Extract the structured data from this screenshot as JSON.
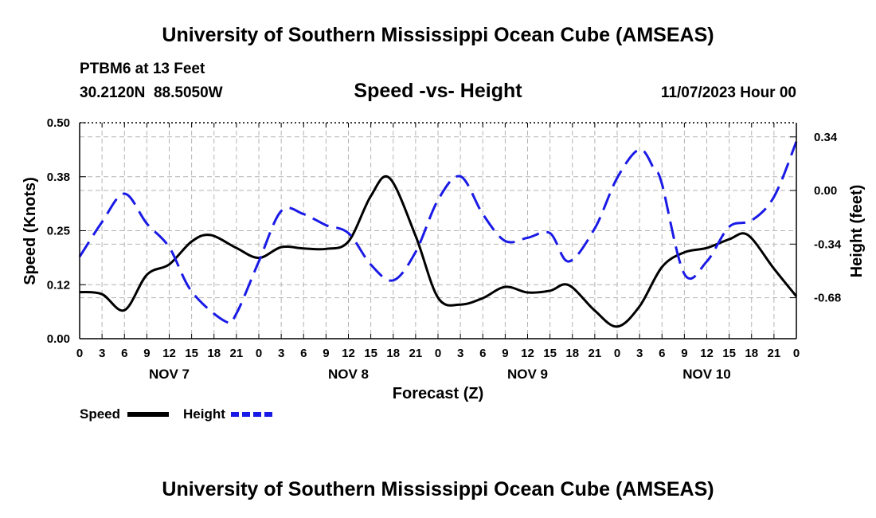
{
  "header": {
    "title": "University of Southern Mississippi Ocean Cube (AMSEAS)",
    "station": "PTBM6 at 13 Feet",
    "coords": "30.2120N  88.5050W",
    "subtitle": "Speed -vs- Height",
    "datetime": "11/07/2023 Hour 00"
  },
  "footer": {
    "title": "University of Southern Mississippi Ocean Cube (AMSEAS)"
  },
  "chart_data": {
    "type": "line",
    "xlabel": "Forecast (Z)",
    "ylabel": "Speed (Knots)",
    "y2label": "Height (feet)",
    "x_range": [
      0,
      96
    ],
    "ylim": [
      0,
      0.5
    ],
    "y2lim": [
      -0.94,
      0.43
    ],
    "y_ticks": [
      {
        "value": 0.0,
        "label": "0.00"
      },
      {
        "value": 0.125,
        "label": "0.12"
      },
      {
        "value": 0.25,
        "label": "0.25"
      },
      {
        "value": 0.375,
        "label": "0.38"
      },
      {
        "value": 0.5,
        "label": "0.50"
      }
    ],
    "y2_ticks": [
      {
        "value": -0.68,
        "label": "-0.68"
      },
      {
        "value": -0.34,
        "label": "-0.34"
      },
      {
        "value": 0.0,
        "label": "0.00"
      },
      {
        "value": 0.34,
        "label": "0.34"
      }
    ],
    "x_ticks": [
      {
        "value": 0,
        "label": "0"
      },
      {
        "value": 3,
        "label": "3"
      },
      {
        "value": 6,
        "label": "6"
      },
      {
        "value": 9,
        "label": "9"
      },
      {
        "value": 12,
        "label": "12"
      },
      {
        "value": 15,
        "label": "15"
      },
      {
        "value": 18,
        "label": "18"
      },
      {
        "value": 21,
        "label": "21"
      },
      {
        "value": 24,
        "label": "0"
      },
      {
        "value": 27,
        "label": "3"
      },
      {
        "value": 30,
        "label": "6"
      },
      {
        "value": 33,
        "label": "9"
      },
      {
        "value": 36,
        "label": "12"
      },
      {
        "value": 39,
        "label": "15"
      },
      {
        "value": 42,
        "label": "18"
      },
      {
        "value": 45,
        "label": "21"
      },
      {
        "value": 48,
        "label": "0"
      },
      {
        "value": 51,
        "label": "3"
      },
      {
        "value": 54,
        "label": "6"
      },
      {
        "value": 57,
        "label": "9"
      },
      {
        "value": 60,
        "label": "12"
      },
      {
        "value": 63,
        "label": "15"
      },
      {
        "value": 66,
        "label": "18"
      },
      {
        "value": 69,
        "label": "21"
      },
      {
        "value": 72,
        "label": "0"
      },
      {
        "value": 75,
        "label": "3"
      },
      {
        "value": 78,
        "label": "6"
      },
      {
        "value": 81,
        "label": "9"
      },
      {
        "value": 84,
        "label": "12"
      },
      {
        "value": 87,
        "label": "15"
      },
      {
        "value": 90,
        "label": "18"
      },
      {
        "value": 93,
        "label": "21"
      },
      {
        "value": 96,
        "label": "0"
      }
    ],
    "day_labels": [
      {
        "value": 12,
        "label": "NOV 7"
      },
      {
        "value": 36,
        "label": "NOV 8"
      },
      {
        "value": 60,
        "label": "NOV 9"
      },
      {
        "value": 84,
        "label": "NOV 10"
      }
    ],
    "series": [
      {
        "name": "Speed",
        "axis": "left",
        "color": "#000000",
        "dash": "solid",
        "x": [
          0,
          3,
          6,
          9,
          12,
          15,
          17.5,
          21,
          24,
          27,
          30,
          33,
          36,
          39,
          41.5,
          45,
          48,
          51,
          54,
          57,
          60,
          63,
          65.5,
          69,
          72,
          75,
          78,
          81,
          84,
          87,
          89.5,
          93,
          96
        ],
        "values": [
          0.108,
          0.103,
          0.066,
          0.148,
          0.172,
          0.225,
          0.24,
          0.21,
          0.187,
          0.212,
          0.209,
          0.208,
          0.225,
          0.33,
          0.372,
          0.238,
          0.095,
          0.079,
          0.094,
          0.12,
          0.107,
          0.111,
          0.124,
          0.065,
          0.028,
          0.075,
          0.166,
          0.2,
          0.21,
          0.23,
          0.24,
          0.162,
          0.098
        ]
      },
      {
        "name": "Height",
        "axis": "right",
        "color": "#1a1ae6",
        "dash": "dashed",
        "x": [
          0,
          3,
          6,
          9,
          12,
          15,
          19.5,
          21,
          24,
          27,
          30,
          33,
          36,
          39,
          42,
          45,
          48,
          51,
          54,
          57,
          60,
          63,
          65.5,
          69,
          72,
          75,
          77,
          78,
          81,
          84,
          87,
          90,
          93,
          96
        ],
        "values": [
          -0.42,
          -0.2,
          -0.02,
          -0.21,
          -0.36,
          -0.64,
          -0.83,
          -0.78,
          -0.45,
          -0.13,
          -0.15,
          -0.22,
          -0.27,
          -0.47,
          -0.57,
          -0.39,
          -0.06,
          0.09,
          -0.15,
          -0.32,
          -0.3,
          -0.27,
          -0.45,
          -0.24,
          0.08,
          0.26,
          0.13,
          0.04,
          -0.53,
          -0.45,
          -0.23,
          -0.19,
          -0.04,
          0.31
        ]
      }
    ],
    "legend": [
      {
        "name": "Speed",
        "color": "#000000",
        "dash": "solid"
      },
      {
        "name": "Height",
        "color": "#1a1ae6",
        "dash": "dashed"
      }
    ],
    "legend_position": "bottom-left",
    "grid": true
  }
}
